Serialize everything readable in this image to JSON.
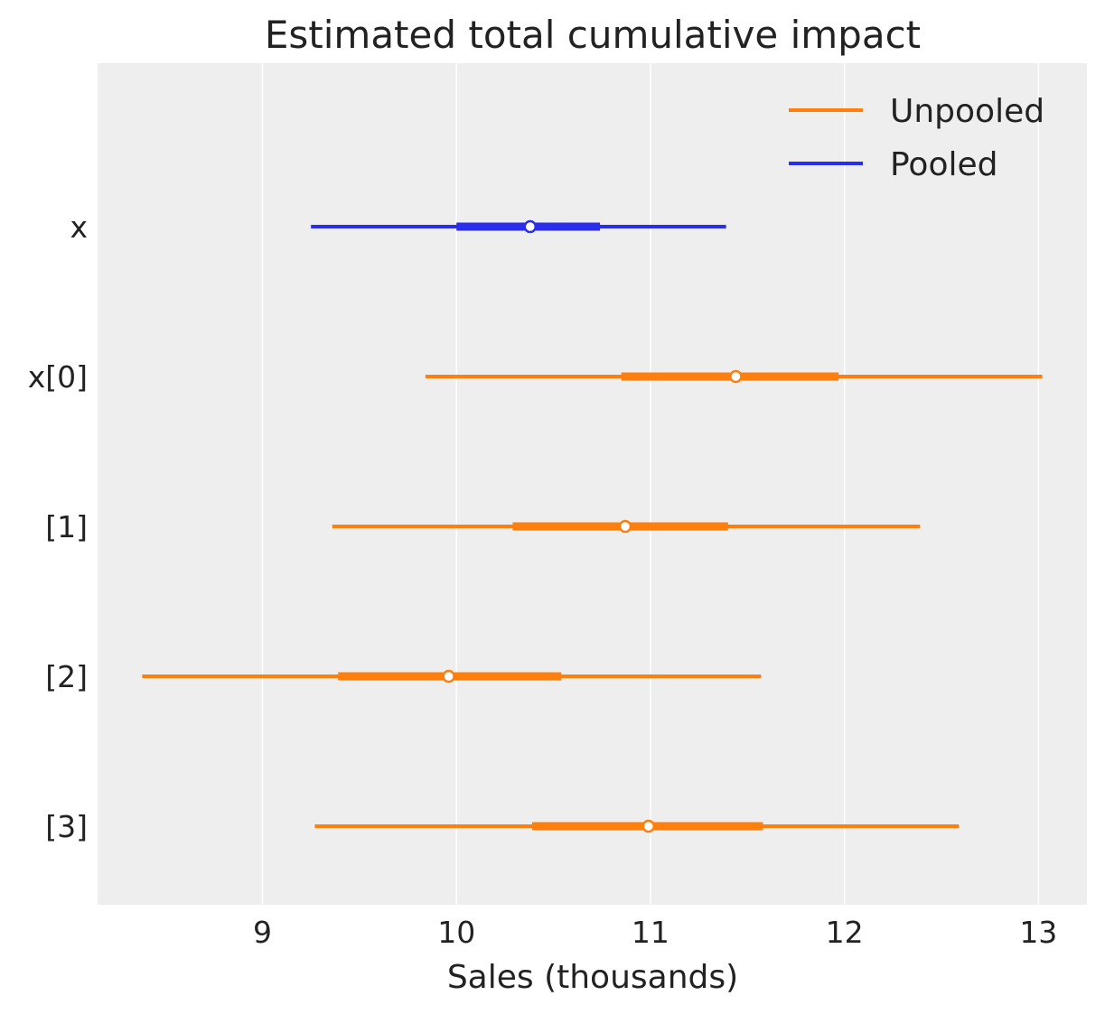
{
  "chart_data": {
    "type": "forest",
    "title": "Estimated total cumulative impact",
    "xlabel": "Sales (thousands)",
    "ylabel": "",
    "xlim": [
      8.15,
      13.25
    ],
    "xticks": [
      "9",
      "10",
      "11",
      "12",
      "13"
    ],
    "grid": "vertical",
    "legend_position": "top-right",
    "series": [
      {
        "name": "Unpooled",
        "color": "#ff7f0e"
      },
      {
        "name": "Pooled",
        "color": "#2a2eec"
      }
    ],
    "rows": [
      {
        "label": "x",
        "series": "Pooled",
        "median": 10.38,
        "hdi_low": 9.25,
        "hdi_high": 11.39,
        "iqr_low": 10.0,
        "iqr_high": 10.74
      },
      {
        "label": "x[0]",
        "series": "Unpooled",
        "median": 11.44,
        "hdi_low": 9.84,
        "hdi_high": 13.02,
        "iqr_low": 10.85,
        "iqr_high": 11.97
      },
      {
        "label": "[1]",
        "series": "Unpooled",
        "median": 10.87,
        "hdi_low": 9.36,
        "hdi_high": 12.39,
        "iqr_low": 10.29,
        "iqr_high": 11.4
      },
      {
        "label": "[2]",
        "series": "Unpooled",
        "median": 9.96,
        "hdi_low": 8.38,
        "hdi_high": 11.57,
        "iqr_low": 9.39,
        "iqr_high": 10.54
      },
      {
        "label": "[3]",
        "series": "Unpooled",
        "median": 10.99,
        "hdi_low": 9.27,
        "hdi_high": 12.59,
        "iqr_low": 10.39,
        "iqr_high": 11.58
      }
    ]
  }
}
